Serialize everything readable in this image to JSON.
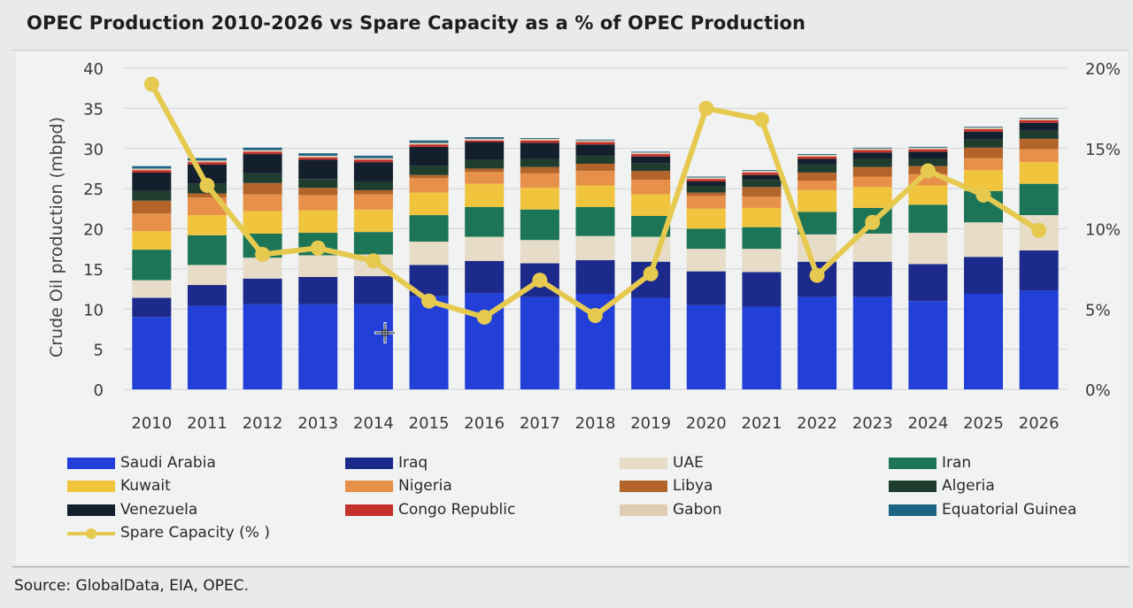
{
  "title": "OPEC Production 2010-2026 vs Spare Capacity as a % of OPEC Production",
  "source": "Source: GlobalData, EIA, OPEC.",
  "chart_data": {
    "type": "bar",
    "stacked": true,
    "ylabel": "Crude Oil production (mbpd)",
    "ylim": [
      0,
      40
    ],
    "yticks": [
      "0",
      "5",
      "10",
      "15",
      "20",
      "25",
      "30",
      "35",
      "40"
    ],
    "y2lim": [
      0,
      20
    ],
    "y2ticks": [
      "0%",
      "5%",
      "10%",
      "15%",
      "20%"
    ],
    "grid": true,
    "legend_position": "bottom",
    "categories": [
      "2010",
      "2011",
      "2012",
      "2013",
      "2014",
      "2015",
      "2016",
      "2017",
      "2018",
      "2019",
      "2020",
      "2021",
      "2022",
      "2023",
      "2024",
      "2025",
      "2026"
    ],
    "series": [
      {
        "name": "Saudi Arabia",
        "color": "#2240d8",
        "values": [
          9.0,
          10.4,
          10.6,
          10.6,
          10.6,
          11.6,
          12.0,
          11.5,
          11.9,
          11.4,
          10.5,
          10.3,
          11.5,
          11.5,
          11.0,
          11.9,
          12.3
        ]
      },
      {
        "name": "Iraq",
        "color": "#1c2a8c",
        "values": [
          2.4,
          2.6,
          3.2,
          3.4,
          3.5,
          3.9,
          4.0,
          4.2,
          4.2,
          4.5,
          4.2,
          4.3,
          4.4,
          4.4,
          4.6,
          4.6,
          5.0
        ]
      },
      {
        "name": "UAE",
        "color": "#e7dcc7",
        "values": [
          2.2,
          2.5,
          2.6,
          2.7,
          2.7,
          2.9,
          3.0,
          2.9,
          3.0,
          3.1,
          2.8,
          2.9,
          3.4,
          3.5,
          3.9,
          4.3,
          4.4
        ]
      },
      {
        "name": "Iran",
        "color": "#1d7558",
        "values": [
          3.8,
          3.7,
          3.0,
          2.8,
          2.8,
          3.3,
          3.7,
          3.8,
          3.6,
          2.6,
          2.5,
          2.7,
          2.8,
          3.2,
          3.5,
          3.9,
          3.9
        ]
      },
      {
        "name": "Kuwait",
        "color": "#f0c43c",
        "values": [
          2.3,
          2.5,
          2.8,
          2.8,
          2.8,
          2.8,
          2.9,
          2.7,
          2.7,
          2.7,
          2.5,
          2.4,
          2.7,
          2.6,
          2.4,
          2.6,
          2.7
        ]
      },
      {
        "name": "Nigeria",
        "color": "#e7904a",
        "values": [
          2.2,
          2.2,
          2.1,
          1.9,
          1.9,
          1.8,
          1.5,
          1.8,
          1.8,
          1.8,
          1.6,
          1.4,
          1.2,
          1.3,
          1.4,
          1.5,
          1.6
        ]
      },
      {
        "name": "Libya",
        "color": "#b3642a",
        "values": [
          1.6,
          0.5,
          1.4,
          0.9,
          0.5,
          0.4,
          0.4,
          0.8,
          0.9,
          1.1,
          0.4,
          1.2,
          1.0,
          1.2,
          1.0,
          1.3,
          1.3
        ]
      },
      {
        "name": "Algeria",
        "color": "#1f3d2e",
        "values": [
          1.2,
          1.2,
          1.2,
          1.1,
          1.1,
          1.1,
          1.1,
          1.0,
          1.0,
          1.0,
          0.9,
          0.9,
          1.0,
          1.0,
          0.9,
          1.0,
          1.0
        ]
      },
      {
        "name": "Venezuela",
        "color": "#141f2d",
        "values": [
          2.3,
          2.4,
          2.4,
          2.4,
          2.4,
          2.4,
          2.2,
          2.0,
          1.4,
          0.8,
          0.5,
          0.6,
          0.7,
          0.8,
          0.9,
          1.0,
          1.0
        ]
      },
      {
        "name": "Congo Republic",
        "color": "#c4302a",
        "values": [
          0.3,
          0.3,
          0.3,
          0.3,
          0.3,
          0.3,
          0.2,
          0.3,
          0.3,
          0.3,
          0.3,
          0.3,
          0.3,
          0.3,
          0.3,
          0.3,
          0.3
        ]
      },
      {
        "name": "Gabon",
        "color": "#e0ccb0",
        "values": [
          0.2,
          0.2,
          0.2,
          0.2,
          0.2,
          0.2,
          0.2,
          0.2,
          0.2,
          0.2,
          0.2,
          0.2,
          0.2,
          0.2,
          0.2,
          0.2,
          0.2
        ]
      },
      {
        "name": "Equatorial Guinea",
        "color": "#1d6384",
        "values": [
          0.3,
          0.3,
          0.3,
          0.3,
          0.3,
          0.3,
          0.2,
          0.1,
          0.1,
          0.1,
          0.1,
          0.1,
          0.1,
          0.1,
          0.1,
          0.1,
          0.1
        ]
      }
    ],
    "line_series": {
      "name": "Spare Capacity (% )",
      "color": "#e6c94f",
      "axis": "right",
      "values": [
        19.0,
        12.7,
        8.4,
        8.8,
        8.0,
        5.5,
        4.5,
        6.8,
        4.6,
        7.2,
        17.5,
        16.8,
        7.1,
        10.4,
        13.6,
        12.1,
        9.9
      ]
    }
  },
  "legend_columns": [
    [
      "Saudi Arabia",
      "Kuwait",
      "Venezuela",
      "Spare Capacity (% )"
    ],
    [
      "Iraq",
      "Nigeria",
      "Congo Republic"
    ],
    [
      "UAE",
      "Libya",
      "Gabon"
    ],
    [
      "Iran",
      "Algeria",
      "Equatorial Guinea"
    ]
  ]
}
